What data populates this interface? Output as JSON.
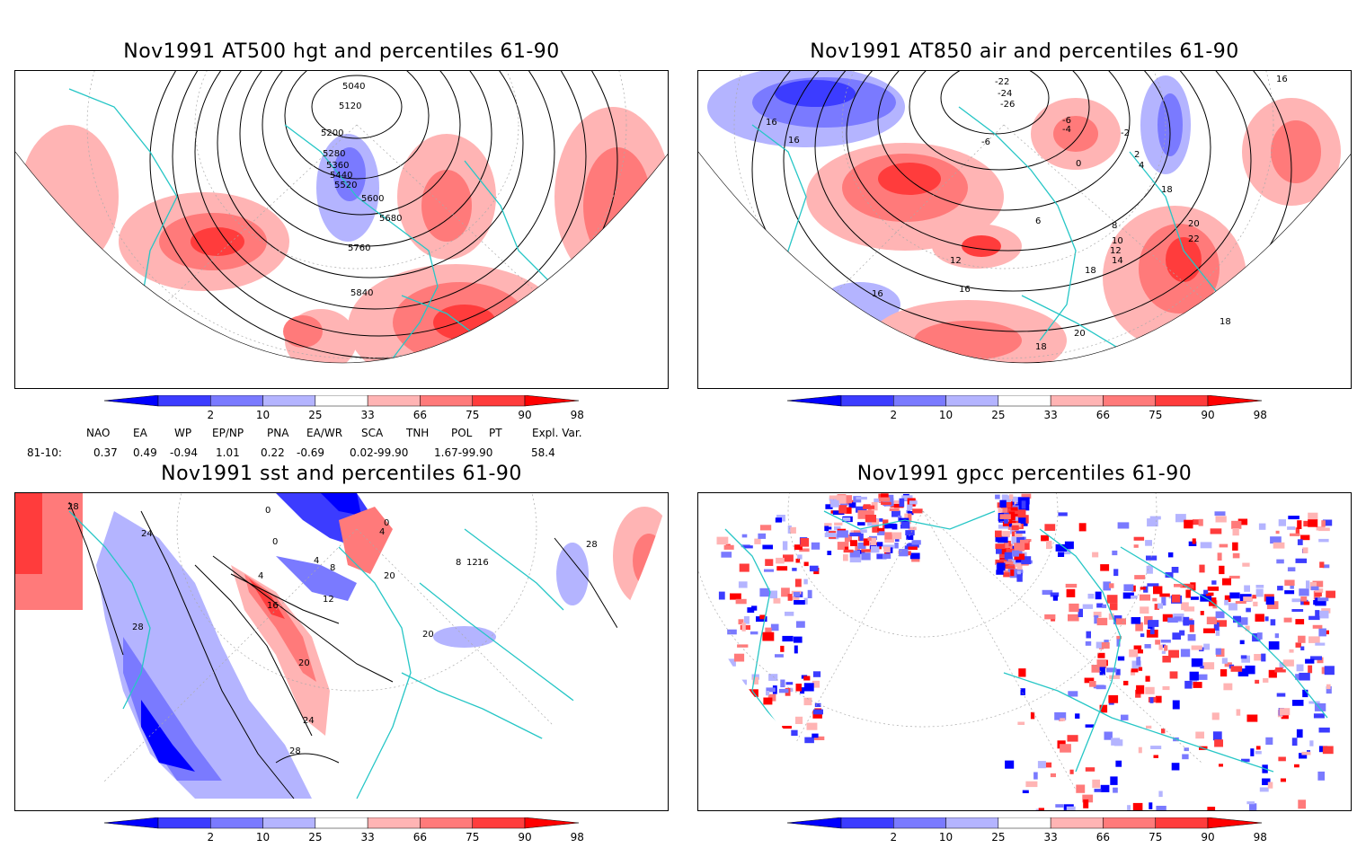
{
  "panels": [
    {
      "id": "hgt",
      "title": "Nov1991 AT500 hgt and percentiles 61-90",
      "contour_labels": [
        "5040",
        "5120",
        "5200",
        "5280",
        "5360",
        "5440",
        "5520",
        "5600",
        "5680",
        "5760",
        "5840"
      ]
    },
    {
      "id": "air",
      "title": "Nov1991 AT850 air and percentiles 61-90",
      "contour_labels": [
        "-22",
        "-24",
        "-26",
        "-6",
        "-6",
        "-4",
        "-2",
        "0",
        "2",
        "4",
        "6",
        "8",
        "10",
        "12",
        "12",
        "14",
        "16",
        "16",
        "16",
        "16",
        "16",
        "18",
        "18",
        "18",
        "18",
        "20",
        "20",
        "22"
      ]
    },
    {
      "id": "sst",
      "title": "Nov1991 sst and percentiles 61-90",
      "contour_labels": [
        "28",
        "24",
        "28",
        "20",
        "24",
        "28",
        "0",
        "0",
        "4",
        "4",
        "8",
        "12",
        "16",
        "4",
        "0",
        "20",
        "20",
        "8",
        "12",
        "16",
        "28"
      ]
    },
    {
      "id": "gpcc",
      "title": "Nov1991 gpcc percentiles 61-90",
      "contour_labels": []
    }
  ],
  "colorbar": {
    "labels": [
      "2",
      "10",
      "25",
      "33",
      "66",
      "75",
      "90",
      "98"
    ],
    "colors": [
      "#0000ff",
      "#3c3cff",
      "#7a7aff",
      "#b4b4ff",
      "#ffffff",
      "#ffb4b4",
      "#ff7a7a",
      "#ff3c3c",
      "#ff0000"
    ]
  },
  "indices": {
    "header": [
      "NAO",
      "EA",
      "WP",
      "EP/NP",
      "PNA",
      "EA/WR",
      "SCA",
      "TNH",
      "POL",
      "PT",
      "Expl. Var."
    ],
    "row_label": "81-10:",
    "values": [
      "0.37",
      "0.49",
      "-0.94",
      "1.01",
      "0.22",
      "-0.69",
      "0.02-99.90",
      "1.67-99.90",
      "58.4"
    ]
  },
  "colors": {
    "coastline": "#26c6c6",
    "contour": "#000000",
    "grid": "#aaaaaa"
  }
}
